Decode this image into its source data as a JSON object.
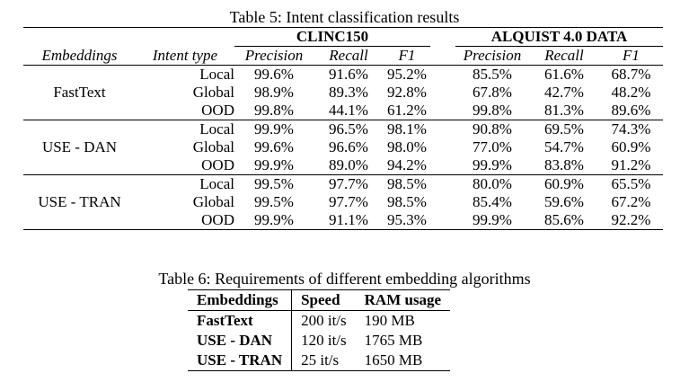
{
  "table5": {
    "caption": "Table 5: Intent classification results",
    "group_clinc": "CLINC150",
    "group_alquist": "ALQUIST 4.0 DATA",
    "headers": [
      "Embeddings",
      "Intent type",
      "Precision",
      "Recall",
      "F1",
      "Precision",
      "Recall",
      "F1"
    ],
    "groups": [
      {
        "name": "FastText",
        "rows": [
          {
            "type": "Local",
            "values": [
              "99.6%",
              "91.6%",
              "95.2%",
              "85.5%",
              "61.6%",
              "68.7%"
            ]
          },
          {
            "type": "Global",
            "values": [
              "98.9%",
              "89.3%",
              "92.8%",
              "67.8%",
              "42.7%",
              "48.2%"
            ]
          },
          {
            "type": "OOD",
            "values": [
              "99.8%",
              "44.1%",
              "61.2%",
              "99.8%",
              "81.3%",
              "89.6%"
            ]
          }
        ]
      },
      {
        "name": "USE - DAN",
        "rows": [
          {
            "type": "Local",
            "values": [
              "99.9%",
              "96.5%",
              "98.1%",
              "90.8%",
              "69.5%",
              "74.3%"
            ]
          },
          {
            "type": "Global",
            "values": [
              "99.6%",
              "96.6%",
              "98.0%",
              "77.0%",
              "54.7%",
              "60.9%"
            ]
          },
          {
            "type": "OOD",
            "values": [
              "99.9%",
              "89.0%",
              "94.2%",
              "99.9%",
              "83.8%",
              "91.2%"
            ]
          }
        ]
      },
      {
        "name": "USE - TRAN",
        "rows": [
          {
            "type": "Local",
            "values": [
              "99.5%",
              "97.7%",
              "98.5%",
              "80.0%",
              "60.9%",
              "65.5%"
            ]
          },
          {
            "type": "Global",
            "values": [
              "99.5%",
              "97.7%",
              "98.5%",
              "85.4%",
              "59.6%",
              "67.2%"
            ]
          },
          {
            "type": "OOD",
            "values": [
              "99.9%",
              "91.1%",
              "95.3%",
              "99.9%",
              "85.6%",
              "92.2%"
            ]
          }
        ]
      }
    ]
  },
  "table6": {
    "caption": "Table 6: Requirements of different embedding algorithms",
    "headers": [
      "Embeddings",
      "Speed",
      "RAM usage"
    ],
    "rows": [
      {
        "embedding": "FastText",
        "speed": "200 it/s",
        "ram": "190 MB"
      },
      {
        "embedding": "USE - DAN",
        "speed": "120 it/s",
        "ram": "1765 MB"
      },
      {
        "embedding": "USE - TRAN",
        "speed": "25 it/s",
        "ram": "1650 MB"
      }
    ]
  }
}
